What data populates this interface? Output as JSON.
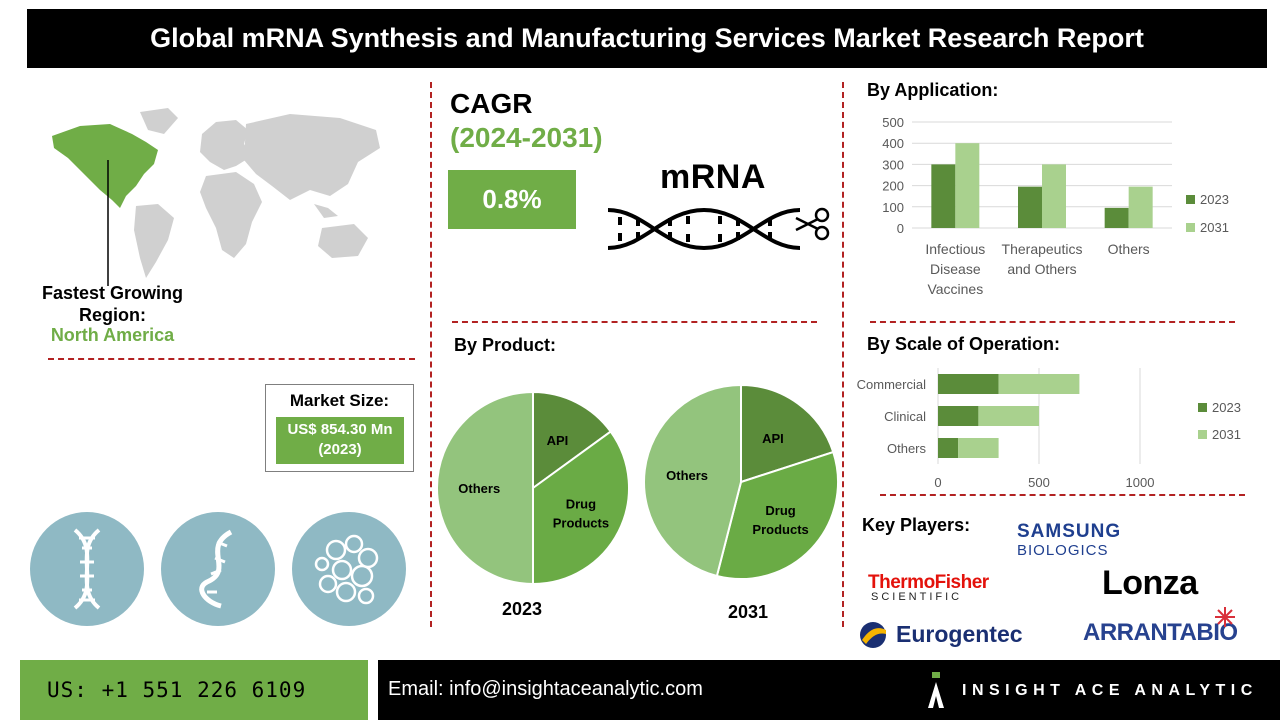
{
  "header": {
    "title": "Global mRNA Synthesis and Manufacturing Services Market Research Report"
  },
  "region": {
    "title": "Fastest Growing Region:",
    "value": "North America"
  },
  "market_size": {
    "title": "Market Size:",
    "value": "US$ 854.30 Mn (2023)"
  },
  "cagr": {
    "title": "CAGR",
    "period": "(2024-2031)",
    "value": "0.8%"
  },
  "mrna_label": "mRNA",
  "colors": {
    "accent": "#70ad47",
    "dark_green": "#5b8c3a",
    "light_green": "#a9d18e",
    "divider": "#b22222",
    "circle": "#8fb9c4"
  },
  "icons": [
    "world-map-icon",
    "dna-icon",
    "scissors-icon",
    "double-helix-icon",
    "rna-strand-icon",
    "protein-icon"
  ],
  "sections": {
    "application": "By Application:",
    "product": "By Product:",
    "scale": "By Scale of Operation:",
    "key_players": "Key Players:"
  },
  "chart_data": [
    {
      "id": "application",
      "type": "bar",
      "categories": [
        [
          "Infectious",
          "Disease",
          "Vaccines"
        ],
        [
          "Therapeutics",
          "and Others"
        ],
        [
          "Others"
        ]
      ],
      "series": [
        {
          "name": "2023",
          "values": [
            300,
            195,
            95
          ]
        },
        {
          "name": "2031",
          "values": [
            400,
            300,
            195
          ]
        }
      ],
      "y_ticks": [
        "0",
        "100",
        "200",
        "300",
        "400",
        "500"
      ],
      "ylim": [
        0,
        500
      ],
      "grid": true,
      "legend": "right"
    },
    {
      "id": "product_2023",
      "type": "pie",
      "title": "2023",
      "labels": [
        "API",
        "Drug Products",
        "Others"
      ],
      "values": [
        15,
        35,
        50
      ]
    },
    {
      "id": "product_2031",
      "type": "pie",
      "title": "2031",
      "labels": [
        "API",
        "Drug Products",
        "Others"
      ],
      "values": [
        20,
        34,
        46
      ]
    },
    {
      "id": "scale",
      "type": "bar",
      "orientation": "horizontal",
      "stacked": true,
      "categories": [
        "Commercial",
        "Clinical",
        "Others"
      ],
      "series": [
        {
          "name": "2023",
          "values": [
            300,
            200,
            100
          ]
        },
        {
          "name": "2031",
          "values": [
            400,
            300,
            200
          ]
        }
      ],
      "x_ticks": [
        "0",
        "500",
        "1000"
      ],
      "xlim": [
        0,
        1000
      ],
      "grid": true,
      "legend": "right"
    }
  ],
  "key_players": {
    "samsung": {
      "line1": "SAMSUNG",
      "line2": "BIOLOGICS"
    },
    "thermo": {
      "line1": "ThermoFisher",
      "line2": "SCIENTIFIC"
    },
    "lonza": "Lonza",
    "eurogentec": "Eurogentec",
    "arranta": "ARRANTABIO"
  },
  "footer": {
    "phone": "US: +1 551 226 6109",
    "email": "Email: info@insightaceanalytic.com",
    "brand": "INSIGHT ACE ANALYTIC"
  }
}
